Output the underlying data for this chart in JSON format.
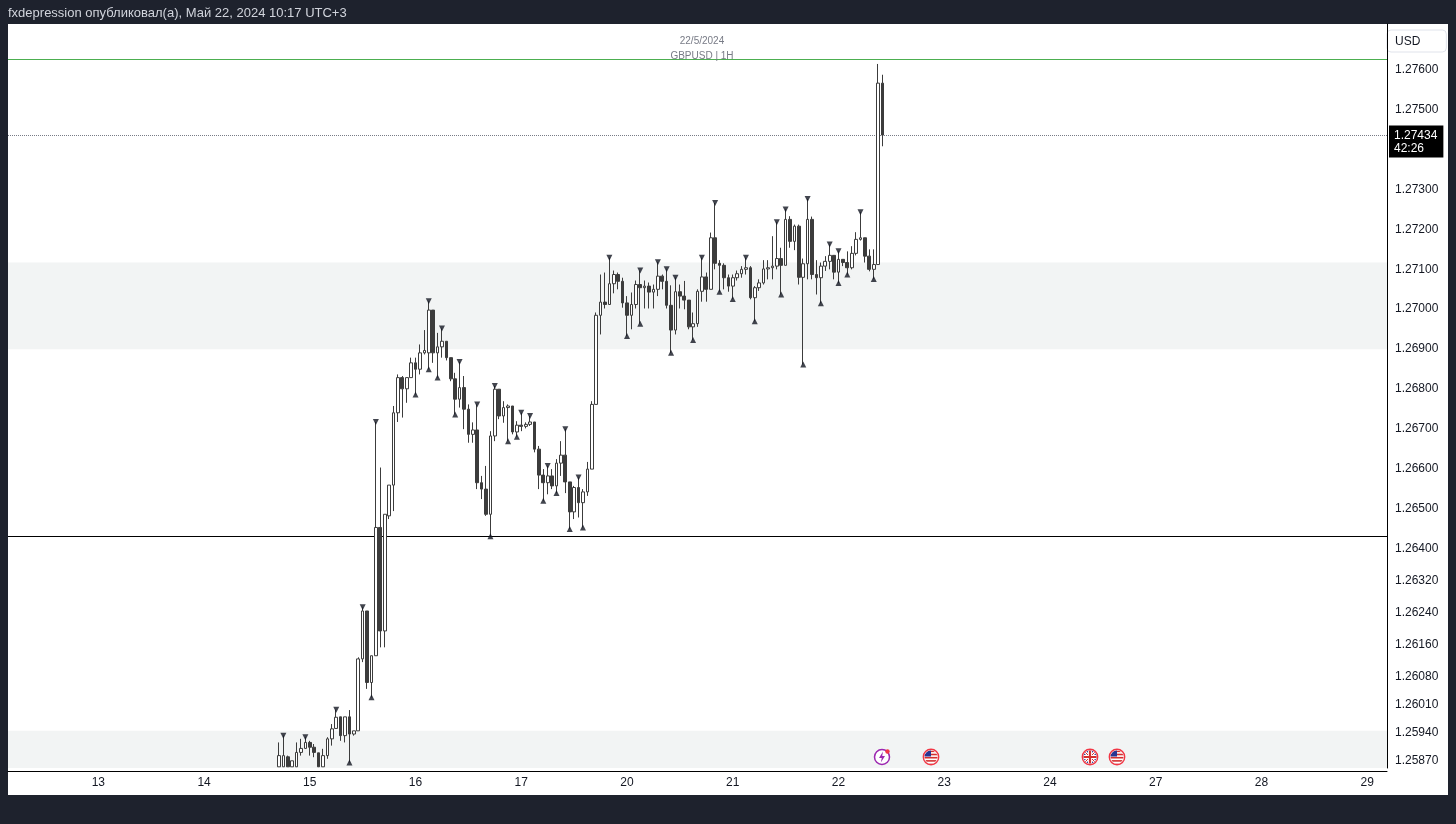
{
  "chart_data": {
    "type": "candlestick",
    "title": "GBPUSD | 1H",
    "subtitle": "22/5/2024",
    "ylabel": "USD",
    "annotations": [
      "fxdepression опубликовал(а), Май 22, 2024 10:17 UTC+3"
    ],
    "categories": [
      null,
      null,
      null,
      null,
      null,
      null,
      null,
      null,
      null,
      null,
      null,
      null,
      null,
      null,
      null,
      null,
      null,
      null,
      null,
      null,
      "13",
      null,
      null,
      null,
      null,
      null,
      null,
      null,
      null,
      null,
      null,
      null,
      null,
      null,
      null,
      null,
      null,
      null,
      null,
      null,
      null,
      null,
      null,
      null,
      "14",
      null,
      null,
      null,
      null,
      null,
      null,
      null,
      null,
      null,
      null,
      null,
      null,
      null,
      null,
      null,
      null,
      null,
      null,
      null,
      null,
      null,
      null,
      null,
      "15",
      null,
      null,
      null,
      null,
      null,
      null,
      null,
      null,
      null,
      null,
      null,
      null,
      null,
      null,
      null,
      null,
      null,
      null,
      null,
      null,
      null,
      null,
      null,
      "16",
      null,
      null,
      null,
      null,
      null,
      null,
      null,
      null,
      null,
      null,
      null,
      null,
      null,
      null,
      null,
      null,
      null,
      null,
      null,
      null,
      null,
      null,
      null,
      "17",
      null,
      null,
      null,
      null,
      null,
      null,
      null,
      null,
      null,
      null,
      null,
      null,
      null,
      null,
      null,
      null,
      null,
      null,
      null,
      null,
      null,
      null,
      null,
      "20",
      null,
      null,
      null,
      null,
      null,
      null,
      null,
      null,
      null,
      null,
      null,
      null,
      null,
      null,
      null,
      null,
      null,
      null,
      null,
      null,
      null,
      null,
      null,
      "21",
      null,
      null,
      null,
      null,
      null,
      null,
      null,
      null,
      null,
      null,
      null,
      null,
      null,
      null,
      null,
      null,
      null,
      null,
      null,
      null,
      null,
      null,
      null,
      "22",
      null,
      null,
      null,
      null,
      null,
      null,
      null,
      null,
      null,
      null,
      null,
      null,
      null,
      null,
      null,
      null,
      null,
      null,
      null,
      null,
      null,
      null,
      null,
      "23",
      null,
      null,
      null,
      null,
      null,
      null,
      null,
      null,
      null,
      null,
      null,
      null,
      null,
      null,
      null,
      null,
      null,
      null,
      null,
      null,
      null,
      null,
      null,
      "24",
      null,
      null,
      null,
      null,
      null,
      null,
      null,
      null,
      null,
      null,
      null,
      null,
      null,
      null,
      null,
      null,
      null,
      null,
      null,
      null,
      null,
      null,
      null,
      "27",
      null,
      null,
      null,
      null,
      null,
      null,
      null,
      null,
      null,
      null,
      null,
      null,
      null,
      null,
      null,
      null,
      null,
      null,
      null,
      null,
      null,
      null,
      null,
      "28",
      null,
      null,
      null,
      null,
      null,
      null,
      null,
      null,
      null,
      null,
      null,
      null,
      null,
      null,
      null,
      null,
      null,
      null,
      null,
      null,
      null,
      null,
      null,
      "29",
      null,
      null,
      null,
      null
    ],
    "ohlc": [
      null,
      null,
      null,
      null,
      null,
      null,
      null,
      null,
      null,
      null,
      null,
      null,
      null,
      null,
      null,
      null,
      null,
      null,
      null,
      null,
      null,
      null,
      null,
      null,
      null,
      null,
      null,
      null,
      null,
      null,
      null,
      null,
      null,
      null,
      null,
      null,
      null,
      null,
      null,
      null,
      null,
      null,
      null,
      null,
      null,
      null,
      null,
      null,
      null,
      null,
      null,
      null,
      null,
      null,
      null,
      null,
      null,
      null,
      null,
      null,
      null,
      [
        1.25853,
        1.25914,
        1.25853,
        1.25881
      ],
      [
        1.25853,
        1.25931,
        1.25853,
        1.25881
      ],
      [
        1.25878,
        1.25881,
        1.25853,
        1.25853
      ],
      [
        1.25853,
        1.25868,
        1.25853,
        1.25868
      ],
      [
        1.25853,
        1.25914,
        1.25853,
        1.25889
      ],
      [
        1.25889,
        1.25923,
        1.25881,
        1.25899
      ],
      [
        1.25899,
        1.25927,
        1.25898,
        1.25914
      ],
      [
        1.25914,
        1.25918,
        1.25881,
        1.25902
      ],
      [
        1.25902,
        1.2591,
        1.25877,
        1.25889
      ],
      [
        1.25888,
        1.25888,
        1.25853,
        1.25853
      ],
      [
        1.25853,
        1.25898,
        1.25853,
        1.25881
      ],
      [
        1.25881,
        1.25927,
        1.25873,
        1.25923
      ],
      [
        1.25923,
        1.2596,
        1.25906,
        1.25948
      ],
      [
        1.25949,
        1.25996,
        1.25949,
        1.25977
      ],
      [
        1.25978,
        1.25978,
        1.25918,
        1.25931
      ],
      [
        1.25931,
        1.25978,
        1.25914,
        1.25978
      ],
      [
        1.25978,
        1.25995,
        1.25864,
        1.25935
      ],
      [
        1.25935,
        1.25943,
        1.25931,
        1.25943
      ],
      [
        1.25943,
        1.26127,
        1.25943,
        1.26123
      ],
      [
        1.26123,
        1.26252,
        1.26115,
        1.26243
      ],
      [
        1.26243,
        1.26243,
        1.26048,
        1.26064
      ],
      [
        1.26064,
        1.26131,
        1.26027,
        1.26131
      ],
      [
        1.26131,
        1.26716,
        1.26131,
        1.26452
      ],
      [
        1.26452,
        1.26602,
        1.26152,
        1.26193
      ],
      [
        1.26193,
        1.26485,
        1.26152,
        1.26485
      ],
      [
        1.26481,
        1.26558,
        1.26473,
        1.26558
      ],
      [
        1.26558,
        1.26756,
        1.26493,
        1.26739
      ],
      [
        1.26739,
        1.26835,
        1.26716,
        1.26827
      ],
      [
        1.26827,
        1.26831,
        1.26727,
        1.26799
      ],
      [
        1.26799,
        1.26827,
        1.26764,
        1.26827
      ],
      [
        1.26827,
        1.26877,
        1.26827,
        1.26864
      ],
      [
        1.26864,
        1.26877,
        1.26785,
        1.26848
      ],
      [
        1.26848,
        1.2691,
        1.26835,
        1.26889
      ],
      [
        1.26889,
        1.26946,
        1.26885,
        1.26895
      ],
      [
        1.26889,
        1.27018,
        1.26848,
        1.26996
      ],
      [
        1.26996,
        1.26996,
        1.26864,
        1.26889
      ],
      [
        1.26889,
        1.26939,
        1.26827,
        1.26904
      ],
      [
        1.26904,
        1.2695,
        1.26877,
        1.26918
      ],
      [
        1.26918,
        1.26918,
        1.2687,
        1.26877
      ],
      [
        1.26877,
        1.26877,
        1.26818,
        1.26824
      ],
      [
        1.26824,
        1.26839,
        1.26735,
        1.26773
      ],
      [
        1.26773,
        1.26866,
        1.26752,
        1.26802
      ],
      [
        1.26802,
        1.26831,
        1.26698,
        1.26748
      ],
      [
        1.26748,
        1.2676,
        1.26664,
        1.26685
      ],
      [
        1.26685,
        1.26715,
        1.26664,
        1.26696
      ],
      [
        1.26696,
        1.2676,
        1.26548,
        1.26564
      ],
      [
        1.26564,
        1.26581,
        1.26523,
        1.26548
      ],
      [
        1.26548,
        1.26606,
        1.26481,
        1.26485
      ],
      [
        1.26485,
        1.26693,
        1.2643,
        1.26681
      ],
      [
        1.26681,
        1.26806,
        1.26668,
        1.26798
      ],
      [
        1.26798,
        1.26798,
        1.26723,
        1.26731
      ],
      [
        1.26731,
        1.26768,
        1.26714,
        1.26752
      ],
      [
        1.26752,
        1.2676,
        1.26668,
        1.26756
      ],
      [
        1.26756,
        1.26756,
        1.26685,
        1.26691
      ],
      [
        1.26691,
        1.26718,
        1.26679,
        1.26708
      ],
      [
        1.26708,
        1.26739,
        1.26693,
        1.26705
      ],
      [
        1.26705,
        1.26715,
        1.267,
        1.2671
      ],
      [
        1.2671,
        1.26731,
        1.26706,
        1.26716
      ],
      [
        1.26716,
        1.26716,
        1.2664,
        1.26648
      ],
      [
        1.26648,
        1.26656,
        1.26548,
        1.26583
      ],
      [
        1.26583,
        1.26598,
        1.26519,
        1.26564
      ],
      [
        1.26564,
        1.26606,
        1.26535,
        1.26581
      ],
      [
        1.26581,
        1.26598,
        1.26548,
        1.26556
      ],
      [
        1.26556,
        1.26623,
        1.26538,
        1.26613
      ],
      [
        1.26613,
        1.26668,
        1.26581,
        1.26633
      ],
      [
        1.26633,
        1.26698,
        1.26538,
        1.26566
      ],
      [
        1.26566,
        1.26566,
        1.26448,
        1.26491
      ],
      [
        1.26491,
        1.26556,
        1.26473,
        1.26552
      ],
      [
        1.26552,
        1.26577,
        1.26477,
        1.26514
      ],
      [
        1.26514,
        1.26548,
        1.26452,
        1.26541
      ],
      [
        1.26541,
        1.26616,
        1.26531,
        1.26598
      ],
      [
        1.26598,
        1.26768,
        1.26598,
        1.2676
      ],
      [
        1.2676,
        1.2699,
        1.2676,
        1.26983
      ],
      [
        1.26983,
        1.27085,
        1.26935,
        1.27016
      ],
      [
        1.27016,
        1.2709,
        1.27,
        1.2701
      ],
      [
        1.2701,
        1.27127,
        1.2701,
        1.27062
      ],
      [
        1.27062,
        1.27095,
        1.27038,
        1.27085
      ],
      [
        1.27085,
        1.2709,
        1.27048,
        1.27068
      ],
      [
        1.27068,
        1.27077,
        1.27002,
        1.27014
      ],
      [
        1.27014,
        1.27031,
        1.26931,
        1.26983
      ],
      [
        1.26983,
        1.2704,
        1.26948,
        1.2701
      ],
      [
        1.2701,
        1.2707,
        1.27,
        1.2706
      ],
      [
        1.2706,
        1.27095,
        1.26962,
        1.27052
      ],
      [
        1.27052,
        1.2707,
        1.27,
        1.27056
      ],
      [
        1.27056,
        1.27065,
        1.27,
        1.27041
      ],
      [
        1.27041,
        1.2706,
        1.27,
        1.27048
      ],
      [
        1.27048,
        1.27116,
        1.27031,
        1.27081
      ],
      [
        1.27081,
        1.27085,
        1.27048,
        1.27068
      ],
      [
        1.27068,
        1.27098,
        1.27,
        1.27008
      ],
      [
        1.27008,
        1.27058,
        1.26889,
        1.26946
      ],
      [
        1.26946,
        1.27077,
        1.26935,
        1.27042
      ],
      [
        1.27042,
        1.2706,
        1.27,
        1.27031
      ],
      [
        1.27031,
        1.27069,
        1.26998,
        1.27021
      ],
      [
        1.27021,
        1.27021,
        1.26948,
        1.26954
      ],
      [
        1.26954,
        1.2699,
        1.26921,
        1.26962
      ],
      [
        1.26962,
        1.27048,
        1.26954,
        1.27043
      ],
      [
        1.27043,
        1.27127,
        1.27017,
        1.27079
      ],
      [
        1.27079,
        1.2709,
        1.27017,
        1.27048
      ],
      [
        1.27048,
        1.2719,
        1.27048,
        1.27177
      ],
      [
        1.27177,
        1.27264,
        1.27098,
        1.27113
      ],
      [
        1.27113,
        1.27121,
        1.27042,
        1.27108
      ],
      [
        1.27108,
        1.27113,
        1.27048,
        1.27077
      ],
      [
        1.27077,
        1.27085,
        1.27042,
        1.27056
      ],
      [
        1.27056,
        1.27085,
        1.27024,
        1.27077
      ],
      [
        1.27077,
        1.27095,
        1.2707,
        1.27087
      ],
      [
        1.27087,
        1.27106,
        1.27077,
        1.27098
      ],
      [
        1.27098,
        1.27127,
        1.27085,
        1.27102
      ],
      [
        1.27102,
        1.27106,
        1.27023,
        1.27027
      ],
      [
        1.27027,
        1.27056,
        1.26968,
        1.27052
      ],
      [
        1.27052,
        1.27073,
        1.27044,
        1.27064
      ],
      [
        1.27064,
        1.27121,
        1.2706,
        1.27099
      ],
      [
        1.27099,
        1.27121,
        1.27073,
        1.27102
      ],
      [
        1.27102,
        1.27181,
        1.27073,
        1.27106
      ],
      [
        1.27106,
        1.27216,
        1.27098,
        1.27125
      ],
      [
        1.27125,
        1.27152,
        1.27035,
        1.27108
      ],
      [
        1.27108,
        1.27248,
        1.27108,
        1.27223
      ],
      [
        1.27223,
        1.27231,
        1.27152,
        1.27168
      ],
      [
        1.27168,
        1.2721,
        1.27146,
        1.27206
      ],
      [
        1.27206,
        1.2721,
        1.2706,
        1.27078
      ],
      [
        1.27078,
        1.27125,
        1.2686,
        1.27112
      ],
      [
        1.27112,
        1.27274,
        1.27073,
        1.27223
      ],
      [
        1.27223,
        1.2723,
        1.27073,
        1.27085
      ],
      [
        1.27085,
        1.27121,
        1.27035,
        1.27077
      ],
      [
        1.27077,
        1.27115,
        1.27013,
        1.27106
      ],
      [
        1.27106,
        1.27131,
        1.27094,
        1.27118
      ],
      [
        1.27118,
        1.2716,
        1.27098,
        1.27133
      ],
      [
        1.27133,
        1.27133,
        1.27073,
        1.27091
      ],
      [
        1.27091,
        1.27143,
        1.27064,
        1.27123
      ],
      [
        1.27123,
        1.27123,
        1.27106,
        1.27115
      ],
      [
        1.27115,
        1.27143,
        1.27085,
        1.27102
      ],
      [
        1.27102,
        1.27156,
        1.27098,
        1.27138
      ],
      [
        1.27138,
        1.27191,
        1.27133,
        1.27173
      ],
      [
        1.27173,
        1.27241,
        1.2717,
        1.27177
      ],
      [
        1.27177,
        1.27177,
        1.27115,
        1.27131
      ],
      [
        1.27131,
        1.27148,
        1.27093,
        1.27098
      ],
      [
        1.27098,
        1.27148,
        1.27074,
        1.2711
      ],
      [
        1.2711,
        1.27612,
        1.2711,
        1.27564
      ],
      [
        1.27564,
        1.27585,
        1.27406,
        1.27434
      ],
      null,
      null,
      null,
      null,
      null,
      null,
      null,
      null,
      null,
      null,
      null,
      null,
      null,
      null,
      null,
      null,
      null,
      null,
      null,
      null,
      null,
      null,
      null,
      null,
      null,
      null,
      null,
      null,
      null,
      null,
      null,
      null,
      null,
      null,
      null,
      null,
      null,
      null,
      null,
      null,
      null,
      null,
      null,
      null,
      null,
      null,
      null,
      null,
      null,
      null,
      null,
      null,
      null,
      null,
      null,
      null,
      null,
      null,
      null,
      null,
      null,
      null,
      null,
      null,
      null,
      null,
      null,
      null,
      null,
      null,
      null,
      null,
      null,
      null,
      null,
      null,
      null,
      null,
      null,
      null,
      null,
      null,
      null,
      null,
      null,
      null,
      null,
      null,
      null,
      null,
      null,
      null,
      null,
      null,
      null,
      null,
      null,
      null,
      null,
      null,
      null,
      null,
      null,
      null,
      null,
      null,
      null,
      null,
      null,
      null,
      null,
      null,
      null,
      null
    ],
    "color": "#3c3c3c",
    "series": [
      {
        "type": "scatter",
        "color": "#131722",
        "values": [
          null,
          null,
          null,
          null,
          null,
          null,
          null,
          null,
          null,
          null,
          null,
          null,
          null,
          null,
          null,
          null,
          null,
          null,
          null,
          null,
          null,
          null,
          null,
          null,
          null,
          null,
          null,
          null,
          null,
          null,
          null,
          null,
          null,
          null,
          null,
          null,
          null,
          null,
          null,
          null,
          null,
          null,
          null,
          null,
          null,
          null,
          null,
          null,
          null,
          null,
          null,
          null,
          null,
          null,
          null,
          null,
          null,
          null,
          null,
          null,
          null,
          null,
          1.25931,
          null,
          null,
          null,
          null,
          1.25927,
          null,
          null,
          null,
          null,
          null,
          null,
          1.25996,
          null,
          null,
          null,
          null,
          null,
          1.26252,
          null,
          null,
          1.26716,
          null,
          null,
          null,
          null,
          null,
          null,
          null,
          null,
          null,
          null,
          null,
          1.27018,
          null,
          null,
          1.2695,
          null,
          null,
          null,
          1.26866,
          null,
          null,
          null,
          1.2676,
          null,
          null,
          null,
          1.26806,
          null,
          null,
          null,
          null,
          null,
          1.26739,
          null,
          1.26731,
          null,
          null,
          null,
          1.26606,
          null,
          null,
          null,
          1.26698,
          null,
          null,
          1.26577,
          null,
          null,
          null,
          null,
          null,
          null,
          1.27127,
          null,
          null,
          null,
          null,
          null,
          null,
          1.27095,
          null,
          null,
          null,
          1.27116,
          null,
          1.27098,
          null,
          1.27077,
          null,
          null,
          null,
          null,
          null,
          1.27127,
          null,
          null,
          1.27264,
          null,
          null,
          null,
          null,
          null,
          null,
          1.27127,
          null,
          null,
          null,
          null,
          null,
          null,
          1.27216,
          null,
          1.27248,
          null,
          null,
          null,
          null,
          1.27274,
          null,
          null,
          null,
          null,
          1.2716,
          null,
          1.27143,
          null,
          null,
          null,
          null,
          1.27241,
          null,
          null,
          null,
          null,
          null,
          null,
          null,
          null,
          null,
          null,
          null,
          null,
          null,
          null,
          null,
          null,
          null,
          null,
          null,
          null,
          null,
          null,
          null,
          null,
          null,
          null,
          null,
          null,
          null,
          null,
          null,
          null,
          null,
          null,
          null,
          null,
          null,
          null,
          null,
          null,
          null,
          null,
          null,
          null,
          null,
          null,
          null,
          null,
          null,
          null,
          null,
          null,
          null,
          null,
          null,
          null,
          null,
          null,
          null,
          null,
          null,
          null,
          null,
          null,
          null,
          null,
          null,
          null,
          null,
          null,
          null,
          null,
          null,
          null,
          null,
          null,
          null,
          null,
          null,
          null,
          null,
          null,
          null,
          null,
          null,
          null,
          null,
          null,
          null,
          null,
          null,
          null,
          null,
          null,
          null,
          null,
          null,
          null,
          null,
          null,
          null,
          null,
          null,
          null,
          null,
          null,
          null,
          null,
          null,
          null,
          null,
          null,
          null,
          null,
          null,
          null,
          null,
          null,
          null
        ]
      },
      {
        "type": "scatter",
        "color": "#131722",
        "values": [
          null,
          null,
          null,
          null,
          null,
          null,
          null,
          null,
          null,
          null,
          null,
          null,
          null,
          null,
          null,
          null,
          null,
          null,
          null,
          null,
          null,
          null,
          null,
          null,
          null,
          null,
          null,
          null,
          null,
          null,
          null,
          null,
          null,
          null,
          null,
          null,
          null,
          null,
          null,
          null,
          null,
          null,
          null,
          null,
          null,
          null,
          null,
          null,
          null,
          null,
          null,
          null,
          null,
          null,
          null,
          null,
          null,
          null,
          null,
          null,
          null,
          null,
          null,
          null,
          null,
          null,
          null,
          null,
          null,
          null,
          null,
          null,
          null,
          null,
          null,
          null,
          null,
          1.25864,
          null,
          null,
          null,
          null,
          1.26027,
          null,
          null,
          null,
          null,
          null,
          null,
          null,
          null,
          null,
          1.26785,
          null,
          null,
          1.26848,
          null,
          1.26827,
          null,
          null,
          null,
          1.26735,
          null,
          null,
          null,
          null,
          null,
          null,
          null,
          1.2643,
          null,
          null,
          null,
          1.26668,
          null,
          1.26679,
          null,
          null,
          null,
          null,
          null,
          1.26519,
          null,
          null,
          1.26538,
          null,
          null,
          1.26448,
          null,
          null,
          1.26452,
          null,
          null,
          null,
          null,
          null,
          null,
          null,
          null,
          null,
          1.26931,
          null,
          null,
          1.26962,
          null,
          null,
          null,
          null,
          null,
          null,
          1.26889,
          null,
          null,
          null,
          null,
          1.26921,
          null,
          null,
          null,
          null,
          null,
          1.27042,
          null,
          null,
          1.27024,
          null,
          null,
          null,
          null,
          1.26968,
          null,
          null,
          null,
          null,
          null,
          1.27035,
          null,
          null,
          null,
          null,
          1.2686,
          null,
          null,
          null,
          1.27013,
          null,
          null,
          null,
          1.27064,
          null,
          1.27085,
          null,
          null,
          null,
          null,
          null,
          1.27074,
          null,
          null,
          null,
          null,
          null,
          null,
          null,
          null,
          null,
          null,
          null,
          null,
          null,
          null,
          null,
          null,
          null,
          null,
          null,
          null,
          null,
          null,
          null,
          null,
          null,
          null,
          null,
          null,
          null,
          null,
          null,
          null,
          null,
          null,
          null,
          null,
          null,
          null,
          null,
          null,
          null,
          null,
          null,
          null,
          null,
          null,
          null,
          null,
          null,
          null,
          null,
          null,
          null,
          null,
          null,
          null,
          null,
          null,
          null,
          null,
          null,
          null,
          null,
          null,
          null,
          null,
          null,
          null,
          null,
          null,
          null,
          null,
          null,
          null,
          null,
          null,
          null,
          null,
          null,
          null,
          null,
          null,
          null,
          null,
          null,
          null,
          null,
          null,
          null,
          null,
          null,
          null,
          null,
          null,
          null,
          null,
          null,
          null,
          null,
          null,
          null,
          null,
          null,
          null,
          null,
          null,
          null,
          null,
          null,
          null,
          null,
          null,
          null,
          null,
          null,
          null
        ]
      }
    ],
    "marker": "triangle",
    "ylim": [
      1.2585,
      1.27712
    ],
    "yticks": [
      {
        "value": 1.276,
        "label": "1.27600"
      },
      {
        "value": 1.275,
        "label": "1.27500"
      },
      {
        "value": 1.273,
        "label": "1.27300"
      },
      {
        "value": 1.272,
        "label": "1.27200"
      },
      {
        "value": 1.271,
        "label": "1.27100"
      },
      {
        "value": 1.27,
        "label": "1.27000"
      },
      {
        "value": 1.269,
        "label": "1.26900"
      },
      {
        "value": 1.268,
        "label": "1.26800"
      },
      {
        "value": 1.267,
        "label": "1.26700"
      },
      {
        "value": 1.266,
        "label": "1.26600"
      },
      {
        "value": 1.265,
        "label": "1.26500"
      },
      {
        "value": 1.264,
        "label": "1.26400"
      },
      {
        "value": 1.2632,
        "label": "1.26320"
      },
      {
        "value": 1.2624,
        "label": "1.26240"
      },
      {
        "value": 1.2616,
        "label": "1.26160"
      },
      {
        "value": 1.2608,
        "label": "1.26080"
      },
      {
        "value": 1.2601,
        "label": "1.26010"
      },
      {
        "value": 1.2594,
        "label": "1.25940"
      },
      {
        "value": 1.2587,
        "label": "1.25870"
      }
    ],
    "ref_lines": [
      {
        "axis": "y",
        "value": 1.27623,
        "color": "#4caf50",
        "line_style": "solid"
      },
      {
        "axis": "y",
        "value": 1.2643,
        "color": "#000000",
        "line_style": "solid"
      },
      {
        "axis": "y",
        "value": 1.27434,
        "label": "1.27434\n42:26",
        "color": "#787b86",
        "line_style": "dotted"
      }
    ],
    "bands": [
      {
        "axis": "y",
        "from": 1.2585,
        "to": 1.25943,
        "color": "#f2f4f4"
      },
      {
        "axis": "y",
        "from": 1.26898,
        "to": 1.27115,
        "color": "#f2f4f4"
      }
    ]
  }
}
